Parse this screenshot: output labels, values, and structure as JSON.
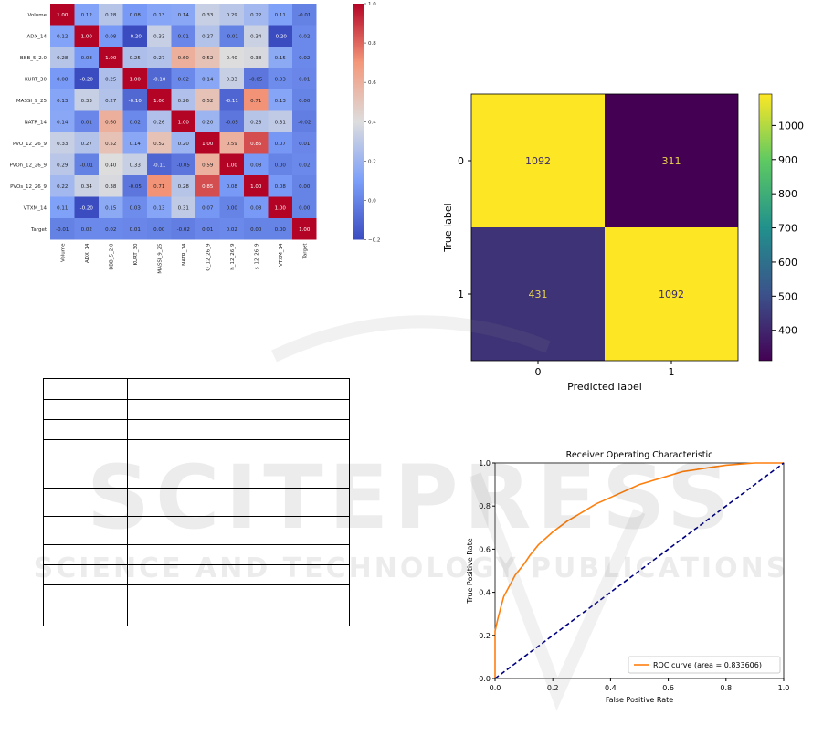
{
  "chart_data": [
    {
      "type": "heatmap",
      "variables": [
        "Volume",
        "ADX_14",
        "BBB_5_2.0",
        "KURT_30",
        "MASSI_9_25",
        "NATR_14",
        "PVO_12_26_9",
        "PVOh_12_26_9",
        "PVOs_12_26_9",
        "VTXM_14",
        "Target"
      ],
      "x_tick_labels": [
        "Volume",
        "ADX_14",
        "BBB_5_2.0",
        "KURT_30",
        "MASSI_9_25",
        "NATR_14",
        "O_12_26_9",
        "h_12_26_9",
        "s_12_26_9",
        "VTXM_14",
        "Target"
      ],
      "matrix": [
        [
          1.0,
          0.12,
          0.28,
          0.08,
          0.13,
          0.14,
          0.33,
          0.29,
          0.22,
          0.11,
          -0.01
        ],
        [
          0.12,
          1.0,
          0.08,
          -0.2,
          0.33,
          0.01,
          0.27,
          -0.01,
          0.34,
          -0.2,
          0.02
        ],
        [
          0.28,
          0.08,
          1.0,
          0.25,
          0.27,
          0.6,
          0.52,
          0.4,
          0.38,
          0.15,
          0.02
        ],
        [
          0.08,
          -0.2,
          0.25,
          1.0,
          -0.1,
          0.02,
          0.14,
          0.33,
          -0.05,
          0.03,
          0.01
        ],
        [
          0.13,
          0.33,
          0.27,
          -0.1,
          1.0,
          0.26,
          0.52,
          -0.11,
          0.71,
          0.13,
          0.0
        ],
        [
          0.14,
          0.01,
          0.6,
          0.02,
          0.26,
          1.0,
          0.2,
          -0.05,
          0.28,
          0.31,
          -0.02
        ],
        [
          0.33,
          0.27,
          0.52,
          0.14,
          0.52,
          0.2,
          1.0,
          0.59,
          0.85,
          0.07,
          0.01
        ],
        [
          0.29,
          -0.01,
          0.4,
          0.33,
          -0.11,
          -0.05,
          0.59,
          1.0,
          0.08,
          0.0,
          0.02
        ],
        [
          0.22,
          0.34,
          0.38,
          -0.05,
          0.71,
          0.28,
          0.85,
          0.08,
          1.0,
          0.08,
          -0.0
        ],
        [
          0.11,
          -0.2,
          0.15,
          0.03,
          0.13,
          0.31,
          0.07,
          0.0,
          0.08,
          1.0,
          -0.0
        ],
        [
          -0.01,
          0.02,
          0.02,
          0.01,
          0.0,
          -0.02,
          0.01,
          0.02,
          -0.0,
          -0.0,
          1.0
        ]
      ],
      "colormap": "coolwarm",
      "colorbar_ticks": [
        "1.0",
        "0.8",
        "0.6",
        "0.4",
        "0.2",
        "0.0",
        "−0.2"
      ],
      "vmin": -0.2,
      "vmax": 1.0
    },
    {
      "type": "heatmap",
      "subtype": "confusion_matrix",
      "matrix": [
        [
          1092,
          311
        ],
        [
          431,
          1092
        ]
      ],
      "x_categories": [
        "0",
        "1"
      ],
      "y_categories": [
        "0",
        "1"
      ],
      "xlabel": "Predicted label",
      "ylabel": "True label",
      "colormap": "viridis",
      "colorbar_ticks": [
        1000,
        900,
        800,
        700,
        600,
        500,
        400
      ],
      "vmin": 311,
      "vmax": 1092
    },
    {
      "type": "line",
      "title": "Receiver Operating Characteristic",
      "xlabel": "False Positive Rate",
      "ylabel": "True Positive Rate",
      "xlim": [
        0.0,
        1.0
      ],
      "ylim": [
        0.0,
        1.0
      ],
      "x_ticks": [
        "0.0",
        "0.2",
        "0.4",
        "0.6",
        "0.8",
        "1.0"
      ],
      "y_ticks": [
        "0.0",
        "0.2",
        "0.4",
        "0.6",
        "0.8",
        "1.0"
      ],
      "legend": "lower-right",
      "series": [
        {
          "name": "ROC curve (area = 0.833606)",
          "color": "#ff7f0e",
          "x": [
            0.0,
            0.0,
            0.01,
            0.02,
            0.03,
            0.05,
            0.07,
            0.1,
            0.12,
            0.15,
            0.2,
            0.25,
            0.3,
            0.35,
            0.4,
            0.45,
            0.5,
            0.55,
            0.6,
            0.65,
            0.7,
            0.75,
            0.8,
            0.85,
            0.9,
            0.95,
            1.0
          ],
          "y": [
            0.0,
            0.22,
            0.28,
            0.33,
            0.38,
            0.43,
            0.48,
            0.53,
            0.57,
            0.62,
            0.68,
            0.73,
            0.77,
            0.81,
            0.84,
            0.87,
            0.9,
            0.92,
            0.94,
            0.96,
            0.97,
            0.98,
            0.99,
            0.995,
            1.0,
            1.0,
            1.0
          ]
        },
        {
          "color": "#000080",
          "style": "dashed",
          "x": [
            0.0,
            1.0
          ],
          "y": [
            0.0,
            1.0
          ]
        }
      ]
    }
  ],
  "watermark": {
    "line1": "SCITEPRESS",
    "line2": "SCIENCE AND TECHNOLOGY PUBLICATIONS"
  },
  "table": {
    "rows": 11,
    "columns": 2
  }
}
